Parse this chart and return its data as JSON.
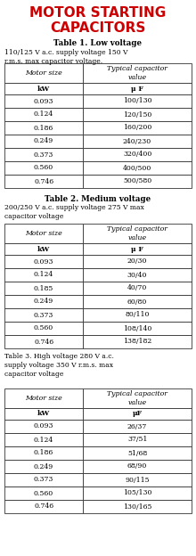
{
  "title_line1": "MOTOR STARTING",
  "title_line2": "CAPACITORS",
  "title_color": "#CC0000",
  "bg_color": "#FFFFFF",
  "table1_title": "Table 1. Low voltage",
  "table1_subtitle": "110/125 V a.c. supply voltage 150 V\nr.m.s. max capacitor voltage.",
  "table2_title": "Table 2. Medium voltage",
  "table2_subtitle": "200/250 V a.c. supply voltage 275 V max\ncapacitor voltage",
  "table3_title": "Table 3. High voltage 280 V a.c.\nsupply voltage 350 V r.m.s. max\ncapacitor voltage",
  "col_header1": "Motor size",
  "col_header2": "Typical capacitor\nvalue",
  "col_unit1": "kW",
  "col_unit2_t1": "μ F",
  "col_unit2_t2": "μ F",
  "col_unit2_t3": "μF",
  "motor_sizes_t1": [
    "0.093",
    "0.124",
    "0.186",
    "0.249",
    "0.373",
    "0.560",
    "0.746"
  ],
  "motor_sizes_t2": [
    "0.093",
    "0.124",
    "0.185",
    "0.249",
    "0.373",
    "0.560",
    "0.746"
  ],
  "motor_sizes_t3": [
    "0.093",
    "0.124",
    "0.186",
    "0.249",
    "0.373",
    "0.560",
    "0.746"
  ],
  "values_t1": [
    "100/130",
    "120/150",
    "160/200",
    "240/230",
    "320/400",
    "400/500",
    "500/580"
  ],
  "values_t2": [
    "20/30",
    "30/40",
    "40/70",
    "60/80",
    "80/110",
    "108/140",
    "138/182"
  ],
  "values_t3": [
    "26/37",
    "37/51",
    "51/68",
    "68/90",
    "90/115",
    "105/130",
    "130/165"
  ]
}
